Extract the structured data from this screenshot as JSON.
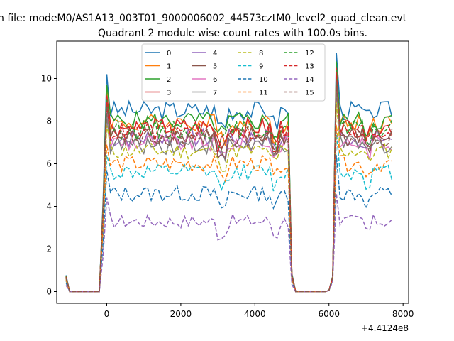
{
  "figure": {
    "suptitle": "n file: modeM0/AS1A13_003T01_9000006002_44573cztM0_level2_quad_clean.evt"
  },
  "chart_data": {
    "type": "line",
    "title": "Quadrant 2 module wise count rates with 100.0s bins.",
    "xlabel": "",
    "ylabel": "",
    "offset_text": "+4.4124e8",
    "xlim": [
      -1350,
      8150
    ],
    "ylim": [
      -0.55,
      11.75
    ],
    "xticks": [
      0,
      2000,
      4000,
      6000,
      8000
    ],
    "yticks": [
      0,
      2,
      4,
      6,
      8,
      10
    ],
    "xticklabels": [
      "0",
      "2000",
      "4000",
      "6000",
      "8000"
    ],
    "yticklabels": [
      "0",
      "2",
      "4",
      "6",
      "8",
      "10"
    ],
    "grid": false,
    "legend": {
      "location": "top-center",
      "ncol": 4
    },
    "x_segments": [
      {
        "start": -1100,
        "end": 7700,
        "step": 100
      }
    ],
    "series": [
      {
        "name": "0",
        "color": "#1f77b4",
        "dash": "solid",
        "level": 8.5,
        "noise": 0.35,
        "peak": 10.2,
        "peak2": 11.2
      },
      {
        "name": "1",
        "color": "#ff7f0e",
        "dash": "solid",
        "level": 7.9,
        "noise": 0.35,
        "peak": 9.4,
        "peak2": 10.6
      },
      {
        "name": "2",
        "color": "#2ca02c",
        "dash": "solid",
        "level": 8.0,
        "noise": 0.35,
        "peak": 9.7,
        "peak2": 10.8
      },
      {
        "name": "3",
        "color": "#d62728",
        "dash": "solid",
        "level": 7.7,
        "noise": 0.35,
        "peak": 9.2,
        "peak2": 10.5
      },
      {
        "name": "4",
        "color": "#9467bd",
        "dash": "solid",
        "level": 7.2,
        "noise": 0.35,
        "peak": 8.6,
        "peak2": 9.9
      },
      {
        "name": "5",
        "color": "#8c564b",
        "dash": "solid",
        "level": 7.3,
        "noise": 0.35,
        "peak": 8.8,
        "peak2": 10.0
      },
      {
        "name": "6",
        "color": "#e377c2",
        "dash": "solid",
        "level": 7.0,
        "noise": 0.35,
        "peak": 8.4,
        "peak2": 9.6
      },
      {
        "name": "7",
        "color": "#7f7f7f",
        "dash": "solid",
        "level": 6.9,
        "noise": 0.35,
        "peak": 8.3,
        "peak2": 9.5
      },
      {
        "name": "8",
        "color": "#bcbd22",
        "dash": "dashed",
        "level": 6.6,
        "noise": 0.3,
        "peak": 7.8,
        "peak2": 8.9
      },
      {
        "name": "9",
        "color": "#17becf",
        "dash": "dashed",
        "level": 5.6,
        "noise": 0.3,
        "peak": 6.4,
        "peak2": 7.5
      },
      {
        "name": "10",
        "color": "#1f77b4",
        "dash": "dashed",
        "level": 4.6,
        "noise": 0.3,
        "peak": 5.7,
        "peak2": 6.4
      },
      {
        "name": "11",
        "color": "#ff7f0e",
        "dash": "dashed",
        "level": 6.0,
        "noise": 0.3,
        "peak": 6.9,
        "peak2": 7.8
      },
      {
        "name": "12",
        "color": "#2ca02c",
        "dash": "dashed",
        "level": 7.6,
        "noise": 0.35,
        "peak": 9.0,
        "peak2": 10.4
      },
      {
        "name": "13",
        "color": "#d62728",
        "dash": "dashed",
        "level": 7.5,
        "noise": 0.35,
        "peak": 8.9,
        "peak2": 10.3
      },
      {
        "name": "14",
        "color": "#9467bd",
        "dash": "dashed",
        "level": 3.3,
        "noise": 0.25,
        "peak": 4.4,
        "peak2": 4.6
      },
      {
        "name": "15",
        "color": "#8c564b",
        "dash": "dashed",
        "level": 7.2,
        "noise": 0.35,
        "peak": 8.7,
        "peak2": 9.9
      }
    ]
  }
}
